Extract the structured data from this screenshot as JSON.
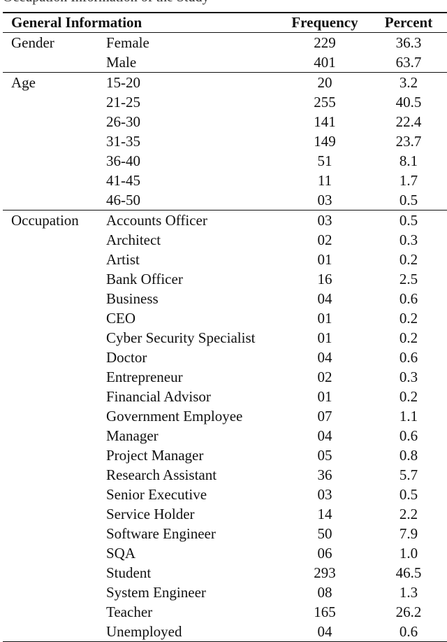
{
  "caption": "Occupation Information of the Study",
  "headers": {
    "general": "General Information",
    "frequency": "Frequency",
    "percent": "Percent"
  },
  "groups": [
    {
      "name": "Gender",
      "rows": [
        [
          "Female",
          "229",
          "36.3"
        ],
        [
          "Male",
          "401",
          "63.7"
        ]
      ]
    },
    {
      "name": "Age",
      "rows": [
        [
          "15-20",
          "20",
          "3.2"
        ],
        [
          "21-25",
          "255",
          "40.5"
        ],
        [
          "26-30",
          "141",
          "22.4"
        ],
        [
          "31-35",
          "149",
          "23.7"
        ],
        [
          "36-40",
          "51",
          "8.1"
        ],
        [
          "41-45",
          "11",
          "1.7"
        ],
        [
          "46-50",
          "03",
          "0.5"
        ]
      ]
    },
    {
      "name": "Occupation",
      "rows": [
        [
          "Accounts Officer",
          "03",
          "0.5"
        ],
        [
          "Architect",
          "02",
          "0.3"
        ],
        [
          "Artist",
          "01",
          "0.2"
        ],
        [
          "Bank Officer",
          "16",
          "2.5"
        ],
        [
          "Business",
          "04",
          "0.6"
        ],
        [
          "CEO",
          "01",
          "0.2"
        ],
        [
          "Cyber Security Specialist",
          "01",
          "0.2"
        ],
        [
          "Doctor",
          "04",
          "0.6"
        ],
        [
          "Entrepreneur",
          "02",
          "0.3"
        ],
        [
          "Financial Advisor",
          "01",
          "0.2"
        ],
        [
          "Government Employee",
          "07",
          "1.1"
        ],
        [
          "Manager",
          "04",
          "0.6"
        ],
        [
          "Project Manager",
          "05",
          "0.8"
        ],
        [
          "Research Assistant",
          "36",
          "5.7"
        ],
        [
          "Senior Executive",
          "03",
          "0.5"
        ],
        [
          "Service Holder",
          "14",
          "2.2"
        ],
        [
          "Software Engineer",
          "50",
          "7.9"
        ],
        [
          "SQA",
          "06",
          "1.0"
        ],
        [
          "Student",
          "293",
          "46.5"
        ],
        [
          "System Engineer",
          "08",
          "1.3"
        ],
        [
          "Teacher",
          "165",
          "26.2"
        ],
        [
          "Unemployed",
          "04",
          "0.6"
        ]
      ]
    }
  ]
}
